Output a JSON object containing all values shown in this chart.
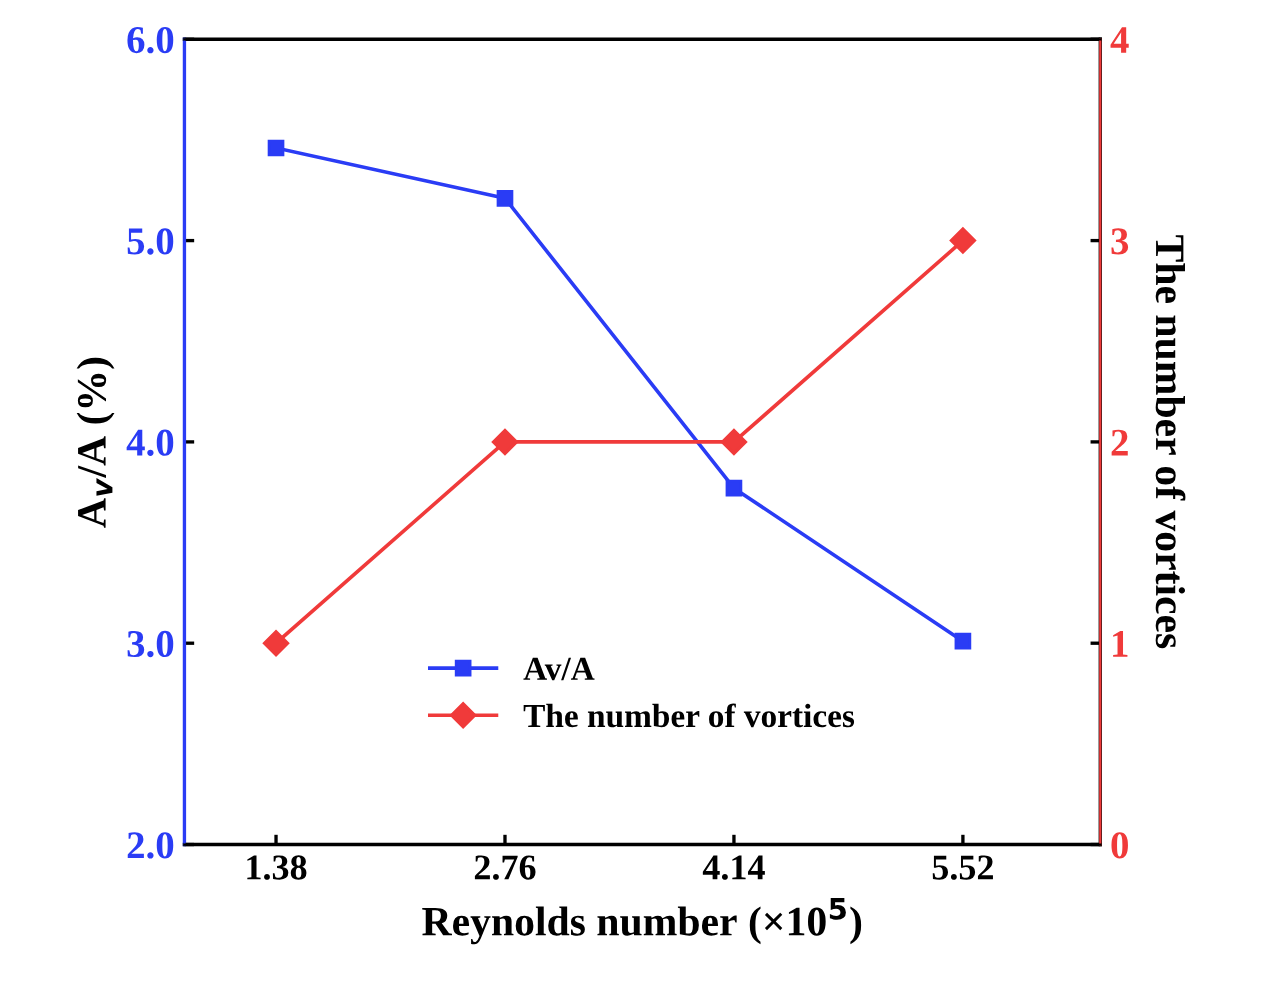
{
  "chart_data": {
    "type": "line",
    "categories": [
      "1.38",
      "2.76",
      "4.14",
      "5.52"
    ],
    "xlabel": "Reynolds number (×10$^{5}$)",
    "ylabel": "A$_{v}$/A (%)",
    "y2label": "The number of vortices",
    "series": [
      {
        "name": "Av/A",
        "color": "#2a3cf5",
        "values": [
          5.46,
          5.21,
          3.77,
          3.01
        ],
        "marker": "square"
      },
      {
        "name": "The number of vortices",
        "color": "#f03a3a",
        "values": [
          1,
          2,
          2,
          3
        ],
        "marker": "diamond",
        "axis": "y2"
      }
    ],
    "ylim": [
      2,
      6
    ],
    "yticks": [
      {
        "value": 2,
        "label": "2.0"
      },
      {
        "value": 3,
        "label": "3.0"
      },
      {
        "value": 4,
        "label": "4.0"
      },
      {
        "value": 5,
        "label": "5.0"
      },
      {
        "value": 6,
        "label": "6.0"
      }
    ],
    "y2lim": [
      0,
      4
    ],
    "y2ticks": [
      0,
      1,
      2,
      3,
      4
    ],
    "legend": "bottom",
    "grid": false
  }
}
